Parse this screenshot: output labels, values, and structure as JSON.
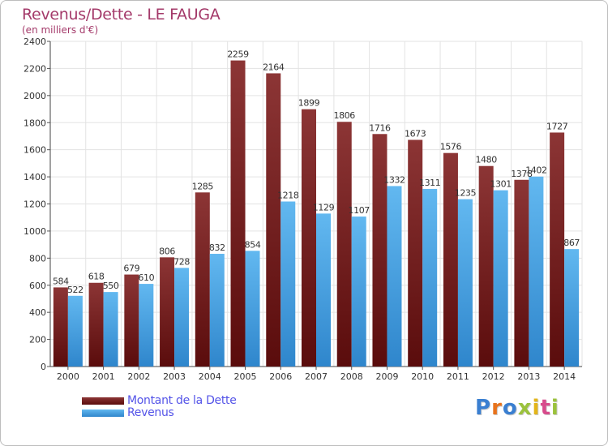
{
  "title": "Revenus/Dette - LE FAUGA",
  "subtitle": "(en milliers d'€)",
  "colors": {
    "title": "#a43a6a",
    "dette": "#6b1b1b",
    "revenus": "#3f9de0",
    "legend_text": "#5454e8"
  },
  "legend": [
    {
      "name": "Montant de la Dette",
      "color": "#6b1b1b"
    },
    {
      "name": "Revenus",
      "color": "#3f9de0"
    }
  ],
  "logo": {
    "text": "Proxiti",
    "icon": "proxiti-logo"
  },
  "chart_data": {
    "type": "bar",
    "categories": [
      "2000",
      "2001",
      "2002",
      "2003",
      "2004",
      "2005",
      "2006",
      "2007",
      "2008",
      "2009",
      "2010",
      "2011",
      "2012",
      "2013",
      "2014"
    ],
    "series": [
      {
        "name": "Montant de la Dette",
        "values": [
          584,
          618,
          679,
          806,
          1285,
          2259,
          2164,
          1899,
          1806,
          1716,
          1673,
          1576,
          1480,
          1378,
          1727
        ]
      },
      {
        "name": "Revenus",
        "values": [
          522,
          550,
          610,
          728,
          832,
          854,
          1218,
          1129,
          1107,
          1332,
          1311,
          1235,
          1301,
          1402,
          867
        ]
      }
    ],
    "title": "Revenus/Dette - LE FAUGA",
    "subtitle": "(en milliers d'€)",
    "ylim": [
      0,
      2400
    ],
    "yticks": [
      0,
      200,
      400,
      600,
      800,
      1000,
      1200,
      1400,
      1600,
      1800,
      2000,
      2200,
      2400
    ],
    "grid": true,
    "legend_position": "bottom-left",
    "data_labels": true
  }
}
